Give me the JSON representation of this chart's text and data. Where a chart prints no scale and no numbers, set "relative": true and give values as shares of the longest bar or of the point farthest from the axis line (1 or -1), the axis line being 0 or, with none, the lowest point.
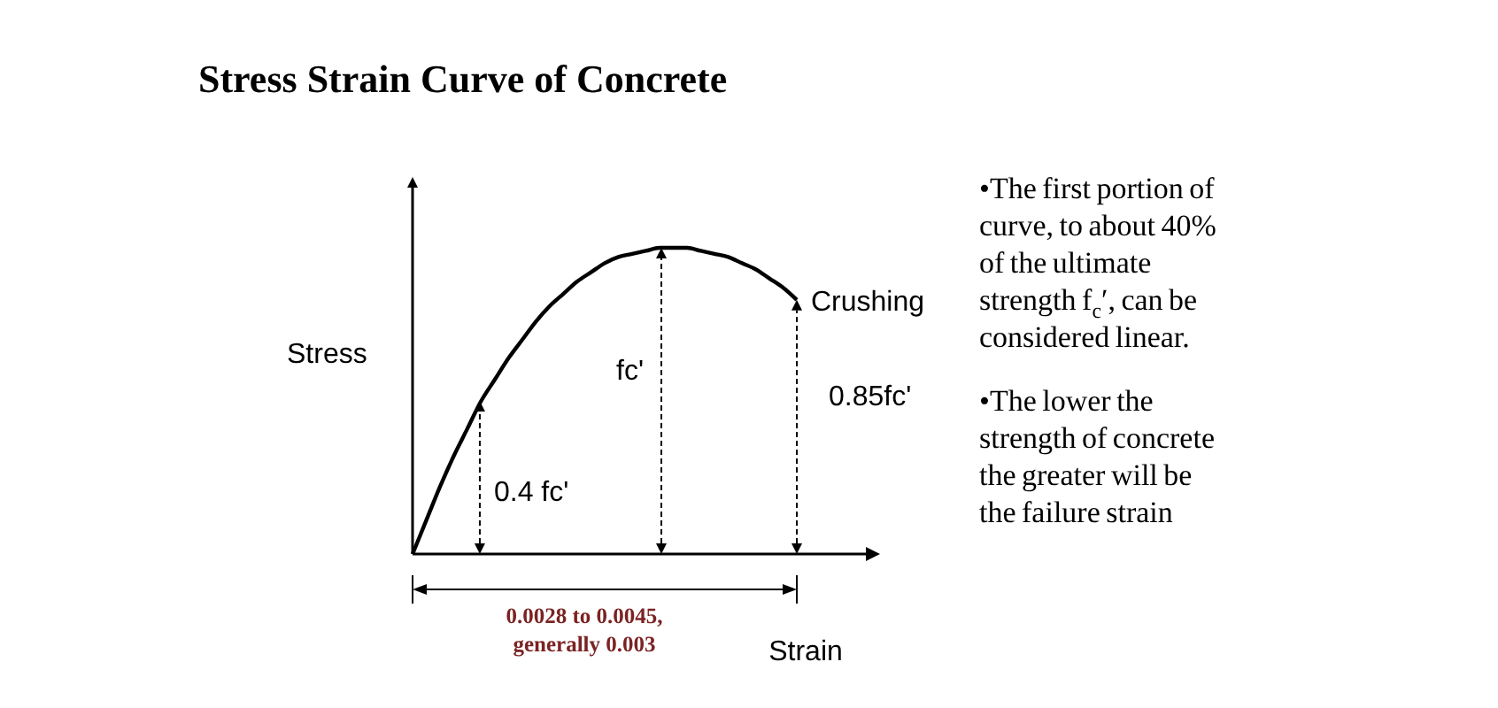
{
  "chart_data": {
    "type": "line",
    "relative": true,
    "title": "Stress Strain Curve of Concrete",
    "xlabel": "Strain",
    "ylabel": "Stress",
    "categories": [
      null,
      null,
      null,
      null,
      null,
      null,
      null,
      null,
      null,
      null,
      null,
      null,
      null,
      null,
      null,
      null,
      null,
      null,
      null,
      null,
      null,
      null,
      null,
      null,
      null,
      null,
      null,
      null,
      null
    ],
    "series": [
      {
        "color": "#000000",
        "values": [
          0,
          0.11,
          0.22,
          0.32,
          0.41,
          0.5,
          0.57,
          0.64,
          0.7,
          0.76,
          0.81,
          0.85,
          0.89,
          0.92,
          0.95,
          0.97,
          0.98,
          0.99,
          1,
          1,
          1,
          0.99,
          0.98,
          0.97,
          0.95,
          0.93,
          0.9,
          0.87,
          0.83
        ]
      }
    ],
    "marker": "none",
    "grid": false,
    "annotations": [
      "0.4 fc'",
      "fc'",
      "0.85fc'",
      "Crushing",
      "0.0028 to 0.0045,\ngenerally 0.003",
      "•The first portion of curve, to about 40% of the ultimate strength f$_{c}$′, can be considered linear.",
      "•The lower the strength of concrete the greater will be the failure strain"
    ]
  }
}
